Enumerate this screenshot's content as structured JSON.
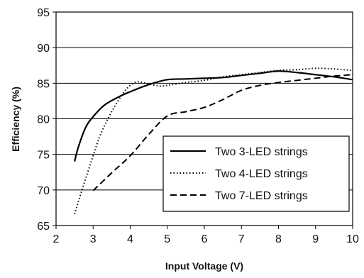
{
  "chart_data": {
    "type": "line",
    "title": "",
    "xlabel": "Input Voltage (V)",
    "ylabel": "Efficiency (%)",
    "xlim": [
      2,
      10
    ],
    "ylim": [
      65,
      95
    ],
    "x_ticks": [
      2,
      3,
      4,
      5,
      6,
      7,
      8,
      9,
      10
    ],
    "y_ticks": [
      65,
      70,
      75,
      80,
      85,
      90,
      95
    ],
    "grid": "horizontal",
    "legend_position": "bottom-right",
    "series": [
      {
        "name": "Two 3-LED strings",
        "style": "solid",
        "color": "#000000",
        "points": [
          [
            2.5,
            74.0
          ],
          [
            2.6,
            76.0
          ],
          [
            2.8,
            78.8
          ],
          [
            3.0,
            80.3
          ],
          [
            3.3,
            81.9
          ],
          [
            3.7,
            83.1
          ],
          [
            4.0,
            83.8
          ],
          [
            4.5,
            84.8
          ],
          [
            5.0,
            85.5
          ],
          [
            5.5,
            85.6
          ],
          [
            6.0,
            85.7
          ],
          [
            6.5,
            85.8
          ],
          [
            7.0,
            86.1
          ],
          [
            7.5,
            86.4
          ],
          [
            8.0,
            86.7
          ],
          [
            8.5,
            86.5
          ],
          [
            9.0,
            86.2
          ],
          [
            9.5,
            85.9
          ],
          [
            10.0,
            85.5
          ]
        ]
      },
      {
        "name": "Two 4-LED strings",
        "style": "dotted",
        "color": "#000000",
        "points": [
          [
            2.5,
            66.6
          ],
          [
            2.7,
            70.0
          ],
          [
            3.0,
            74.8
          ],
          [
            3.2,
            77.8
          ],
          [
            3.5,
            81.0
          ],
          [
            3.8,
            83.5
          ],
          [
            4.0,
            84.7
          ],
          [
            4.2,
            85.2
          ],
          [
            4.5,
            84.9
          ],
          [
            4.8,
            84.6
          ],
          [
            5.0,
            84.7
          ],
          [
            5.5,
            85.1
          ],
          [
            6.0,
            85.4
          ],
          [
            6.5,
            85.9
          ],
          [
            7.0,
            86.2
          ],
          [
            7.5,
            86.5
          ],
          [
            8.0,
            86.8
          ],
          [
            8.5,
            86.9
          ],
          [
            9.0,
            87.1
          ],
          [
            9.5,
            87.0
          ],
          [
            10.0,
            86.8
          ]
        ]
      },
      {
        "name": "Two 7-LED strings",
        "style": "dashed",
        "color": "#000000",
        "points": [
          [
            3.0,
            69.9
          ],
          [
            3.5,
            72.4
          ],
          [
            4.0,
            74.8
          ],
          [
            4.5,
            77.8
          ],
          [
            5.0,
            80.4
          ],
          [
            5.5,
            81.0
          ],
          [
            6.0,
            81.6
          ],
          [
            6.5,
            82.7
          ],
          [
            7.0,
            84.0
          ],
          [
            7.5,
            84.7
          ],
          [
            8.0,
            85.1
          ],
          [
            8.5,
            85.4
          ],
          [
            9.0,
            85.7
          ],
          [
            9.5,
            86.0
          ],
          [
            10.0,
            86.2
          ]
        ]
      }
    ]
  }
}
